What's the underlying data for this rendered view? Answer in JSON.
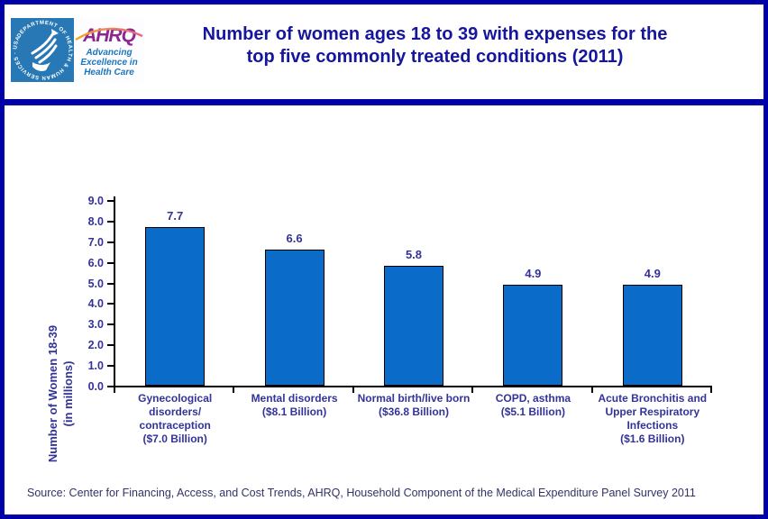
{
  "header": {
    "logo": {
      "seal_text": "DEPARTMENT OF HEALTH & HUMAN SERVICES · USA",
      "ahrq_acronym": "AHRQ",
      "tagline": "Advancing\nExcellence in\nHealth Care"
    },
    "title_line1": "Number of women ages 18 to 39 with expenses for the",
    "title_line2": "top five commonly treated conditions (2011)"
  },
  "chart_data": {
    "type": "bar",
    "title": "Number of women ages 18 to 39 with expenses for the top five commonly treated conditions (2011)",
    "categories": [
      "Gynecological\ndisorders/\ncontraception\n($7.0 Billion)",
      "Mental disorders\n($8.1 Billion)",
      "Normal birth/live born\n($36.8 Billion)",
      "COPD, asthma\n($5.1 Billion)",
      "Acute Bronchitis and\nUpper Respiratory\nInfections\n($1.6 Billion)"
    ],
    "values": [
      7.7,
      6.6,
      5.8,
      4.9,
      4.9
    ],
    "value_labels": [
      "7.7",
      "6.6",
      "5.8",
      "4.9",
      "4.9"
    ],
    "xlabel": "",
    "ylabel_line1": "Number of Women 18-39",
    "ylabel_line2": "(in millions)",
    "ylim": [
      0,
      9
    ],
    "yticks": [
      "0.0",
      "1.0",
      "2.0",
      "3.0",
      "4.0",
      "5.0",
      "6.0",
      "7.0",
      "8.0",
      "9.0"
    ],
    "grid": false,
    "legend": "none",
    "bar_color": "#0a6cc8",
    "bar_border_color": "#000000",
    "label_color": "#333399"
  },
  "source_note": "Source: Center for Financing, Access, and Cost Trends, AHRQ, Household Component of the Medical Expenditure Panel Survey 2011",
  "colors": {
    "page_border": "#0000a8",
    "title_text": "#15159e",
    "hhs_blue": "#2878b5",
    "ahrq_purple": "#8a2890",
    "tagline_blue": "#1b75bc",
    "arc_orange": "#f5a623",
    "arc_pink": "#e8638c",
    "source_text": "#333366"
  }
}
